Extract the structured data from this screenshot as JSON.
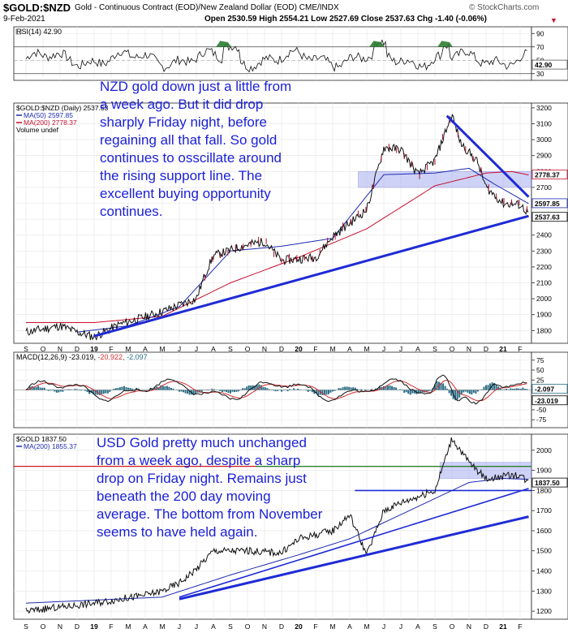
{
  "header": {
    "symbol": "$GOLD:$NZD",
    "description": "Gold - Continuous Contract (EOD)/New Zealand Dollar (EOD) CME/INDX",
    "watermark": "© StockCharts.com",
    "date": "9-Feb-2021",
    "ohlc": "Open 2530.59 High 2554.21 Low 2527.69 Close 2537.63 Chg -1.40 (-0.06%)"
  },
  "colors": {
    "price": "#000000",
    "ma50": "#1f2bb0",
    "ma200": "#c8102e",
    "trend": "#1f2bd6",
    "band": "#9fa6f0",
    "rsi_fill": "#2e7d32",
    "hist": "#2c6e86",
    "macd_signal": "#d32f2f",
    "green_line": "#1b8a2a",
    "red_line": "#d01818",
    "annotation": "#1a1fd6"
  },
  "chart_data": [
    {
      "type": "line",
      "name": "rsi",
      "legend": "RSI(14) 42.90",
      "current": 42.9,
      "current_label": "42.90",
      "levels": [
        30,
        70
      ],
      "y_ticks": [
        "90",
        "70",
        "50",
        "30"
      ],
      "ylim": [
        20,
        100
      ]
    },
    {
      "type": "line",
      "name": "gold_nzd",
      "legend": [
        "$GOLD:$NZD (Daily) 2537.63",
        "MA(50) 2597.85",
        "MA(200) 2778.37",
        "Volume undef"
      ],
      "y_ticks": [
        "3200",
        "3100",
        "3000",
        "2900",
        "2800",
        "2700",
        "2600",
        "2500",
        "2400",
        "2300",
        "2200",
        "2100",
        "2000",
        "1900",
        "1800"
      ],
      "ylim": [
        1720,
        3230
      ],
      "series": [
        {
          "name": "$GOLD:$NZD",
          "x": [
            0,
            2,
            3,
            4,
            5.5,
            6.5,
            8,
            10,
            10.5,
            11,
            13,
            14,
            15,
            17,
            18,
            20,
            21,
            22,
            23,
            24,
            25,
            25.5,
            26,
            26.5,
            27,
            28,
            29,
            29.5
          ],
          "y": [
            1790,
            1830,
            1790,
            1760,
            1840,
            1870,
            1920,
            2000,
            2150,
            2270,
            2340,
            2360,
            2240,
            2260,
            2390,
            2560,
            2950,
            2940,
            2780,
            2870,
            3160,
            2980,
            2920,
            2860,
            2700,
            2600,
            2590,
            2537
          ]
        },
        {
          "name": "MA(50) 2597.85",
          "x": [
            3,
            6,
            9,
            12,
            15,
            18,
            21,
            24,
            26,
            27.5,
            29.5
          ],
          "y": [
            1790,
            1830,
            1950,
            2300,
            2330,
            2380,
            2780,
            2790,
            2820,
            2720,
            2598
          ]
        },
        {
          "name": "MA(200) 2778.37",
          "x": [
            0,
            4,
            8,
            12,
            16,
            20,
            24,
            27,
            28.5,
            29.5
          ],
          "y": [
            1850,
            1850,
            1890,
            2100,
            2260,
            2440,
            2710,
            2790,
            2800,
            2778
          ]
        }
      ],
      "trendlines": [
        {
          "x": [
            4,
            29.5
          ],
          "y": [
            1765,
            2520
          ]
        },
        {
          "x": [
            24.7,
            29.5
          ],
          "y": [
            3150,
            2640
          ]
        }
      ],
      "band": {
        "from": 2700,
        "to": 2800
      },
      "price_labels": [
        "2778.37",
        "2597.85",
        "2537.63"
      ],
      "annotation": "NZD gold down just a little from\na week ago. But it did drop\nsharply Friday night, before\nregaining all that fall. So gold\ncontinues to osscillate around\nthe rising support line. The\nexcellent buying opportunity\ncontinues."
    },
    {
      "type": "line",
      "name": "macd",
      "legend_parts": [
        "MACD(12,26,9) -23.019, ",
        "-20.922",
        ", -2.097"
      ],
      "y_ticks": [
        "75",
        "50",
        "25",
        "0",
        "-25",
        "-50",
        "-75"
      ],
      "ylim": [
        -95,
        95
      ],
      "value_labels": [
        "-2.097",
        "-23.019"
      ]
    },
    {
      "type": "line",
      "name": "gold_usd",
      "legend": [
        "$GOLD 1837.50",
        "MA(200) 1855.37"
      ],
      "y_ticks": [
        "2000",
        "1900",
        "1800",
        "1700",
        "1600",
        "1500",
        "1400",
        "1300",
        "1200"
      ],
      "ylim": [
        1160,
        2080
      ],
      "series": [
        {
          "name": "$GOLD",
          "x": [
            0,
            4,
            7,
            8,
            9,
            10,
            11,
            13,
            15,
            16,
            17,
            18,
            19,
            20,
            21,
            22,
            24,
            25,
            26,
            27,
            29,
            29.5
          ],
          "y": [
            1200,
            1240,
            1280,
            1300,
            1340,
            1410,
            1500,
            1500,
            1490,
            1560,
            1580,
            1600,
            1680,
            1480,
            1700,
            1740,
            1800,
            2060,
            1940,
            1860,
            1880,
            1837
          ]
        },
        {
          "name": "MA(200) 1855.37",
          "x": [
            0,
            8,
            12,
            16,
            19,
            21,
            24,
            26,
            28,
            29.5
          ],
          "y": [
            1240,
            1270,
            1380,
            1480,
            1560,
            1640,
            1760,
            1840,
            1860,
            1855
          ]
        }
      ],
      "trendlines": [
        {
          "x": [
            9,
            29.5
          ],
          "y": [
            1260,
            1670
          ]
        },
        {
          "x": [
            9,
            29.5
          ],
          "y": [
            1270,
            1810
          ]
        }
      ],
      "support_line": 1800,
      "resistance_line": 1920,
      "band": {
        "from": 1860,
        "to": 1940
      },
      "price_label": "1837.50",
      "annotation": "USD Gold pretty much unchanged\nfrom a week ago, despite a sharp\ndrop on Friday night. Remains just\nbeneath the 200 day moving\naverage. The bottom from November\nseems to have held again."
    }
  ],
  "x_axis": {
    "months": [
      "S",
      "O",
      "N",
      "D",
      "19",
      "F",
      "M",
      "A",
      "M",
      "J",
      "J",
      "A",
      "S",
      "O",
      "N",
      "D",
      "20",
      "F",
      "M",
      "A",
      "M",
      "J",
      "J",
      "A",
      "S",
      "O",
      "N",
      "D",
      "21",
      "F"
    ],
    "bold": [
      "19",
      "20",
      "21"
    ]
  }
}
